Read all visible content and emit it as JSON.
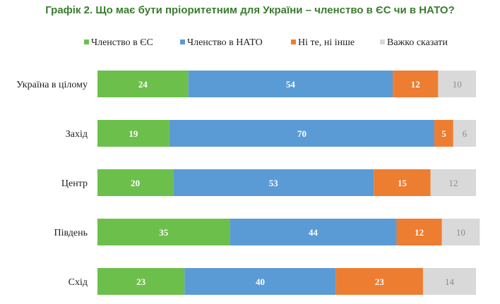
{
  "chart_data": {
    "type": "bar",
    "orientation": "horizontal",
    "stacked": true,
    "title": "Графік 2. Що має бути пріоритетним для України – членство в ЄС чи в НАТО?",
    "categories": [
      "Україна в цілому",
      "Захід",
      "Центр",
      "Південь",
      "Схід"
    ],
    "series": [
      {
        "name": "Членство в ЄС",
        "color": "#6dbf4b",
        "values": [
          24,
          19,
          20,
          35,
          23
        ]
      },
      {
        "name": "Членство в НАТО",
        "color": "#5b9bd5",
        "values": [
          54,
          70,
          53,
          44,
          40
        ]
      },
      {
        "name": "Ні те, ні інше",
        "color": "#ed7d31",
        "values": [
          12,
          5,
          15,
          12,
          23
        ]
      },
      {
        "name": "Важко сказати",
        "color": "#d9d9d9",
        "values": [
          10,
          6,
          12,
          10,
          14
        ]
      }
    ],
    "xlim": [
      0,
      100
    ],
    "legend_position": "top",
    "grid": false
  }
}
